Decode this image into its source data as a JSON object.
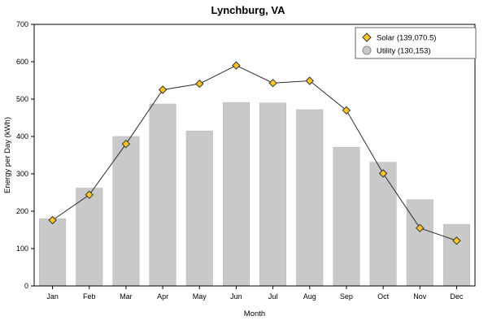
{
  "chart_data": {
    "type": "bar",
    "title": "Lynchburg, VA",
    "xlabel": "Month",
    "ylabel": "Energy per Day (kWh)",
    "ylim": [
      0,
      700
    ],
    "ytick_step": 100,
    "grid": false,
    "legend_position": "top-right",
    "categories": [
      "Jan",
      "Feb",
      "Mar",
      "Apr",
      "May",
      "Jun",
      "Jul",
      "Aug",
      "Sep",
      "Oct",
      "Nov",
      "Dec"
    ],
    "series": [
      {
        "name": "Utility (130,153)",
        "type": "bar",
        "color": "#c9c9c9",
        "edge_color": "#b5b5b5",
        "values": [
          180,
          262,
          400,
          487,
          415,
          491,
          490,
          472,
          371,
          331,
          231,
          165
        ]
      },
      {
        "name": "Solar (139,070.5)",
        "type": "line",
        "color": "#2b2b2b",
        "marker": "diamond",
        "marker_color": "#ffc425",
        "values": [
          176,
          244,
          380,
          525,
          541,
          590,
          543,
          549,
          470,
          301,
          155,
          121
        ]
      }
    ],
    "legend": {
      "entries": [
        {
          "label": "Solar (139,070.5)",
          "marker": "diamond",
          "color": "#ffc425"
        },
        {
          "label": "Utility (130,153)",
          "marker": "circle",
          "color": "#c9c9c9"
        }
      ]
    }
  }
}
